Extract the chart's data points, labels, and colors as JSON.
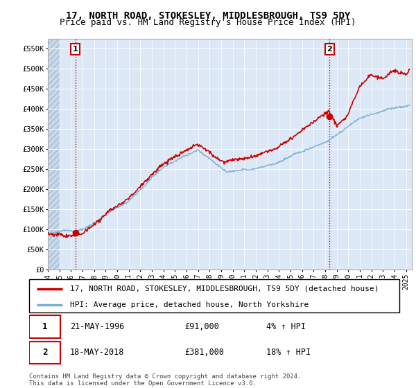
{
  "title": "17, NORTH ROAD, STOKESLEY, MIDDLESBROUGH, TS9 5DY",
  "subtitle": "Price paid vs. HM Land Registry's House Price Index (HPI)",
  "ylim": [
    0,
    575000
  ],
  "yticks": [
    0,
    50000,
    100000,
    150000,
    200000,
    250000,
    300000,
    350000,
    400000,
    450000,
    500000,
    550000
  ],
  "ytick_labels": [
    "£0",
    "£50K",
    "£100K",
    "£150K",
    "£200K",
    "£250K",
    "£300K",
    "£350K",
    "£400K",
    "£450K",
    "£500K",
    "£550K"
  ],
  "xmin": 1994.0,
  "xmax": 2025.5,
  "xticks": [
    1994,
    1995,
    1996,
    1997,
    1998,
    1999,
    2000,
    2001,
    2002,
    2003,
    2004,
    2005,
    2006,
    2007,
    2008,
    2009,
    2010,
    2011,
    2012,
    2013,
    2014,
    2015,
    2016,
    2017,
    2018,
    2019,
    2020,
    2021,
    2022,
    2023,
    2024,
    2025
  ],
  "hpi_color": "#7bafd4",
  "price_color": "#cc0000",
  "vline_color": "#cc0000",
  "annotation_box_color": "#cc0000",
  "background_plot": "#dce8f5",
  "hatch_color": "#c8d8eb",
  "grid_color": "#ffffff",
  "sale1_x": 1996.38,
  "sale1_y": 91000,
  "sale1_label": "1",
  "sale1_date": "21-MAY-1996",
  "sale1_price": "£91,000",
  "sale1_hpi": "4% ↑ HPI",
  "sale2_x": 2018.37,
  "sale2_y": 381000,
  "sale2_label": "2",
  "sale2_date": "18-MAY-2018",
  "sale2_price": "£381,000",
  "sale2_hpi": "18% ↑ HPI",
  "legend_line1": "17, NORTH ROAD, STOKESLEY, MIDDLESBROUGH, TS9 5DY (detached house)",
  "legend_line2": "HPI: Average price, detached house, North Yorkshire",
  "footer": "Contains HM Land Registry data © Crown copyright and database right 2024.\nThis data is licensed under the Open Government Licence v3.0.",
  "title_fontsize": 10,
  "subtitle_fontsize": 9,
  "tick_fontsize": 7.5,
  "legend_fontsize": 8,
  "footer_fontsize": 6.5
}
